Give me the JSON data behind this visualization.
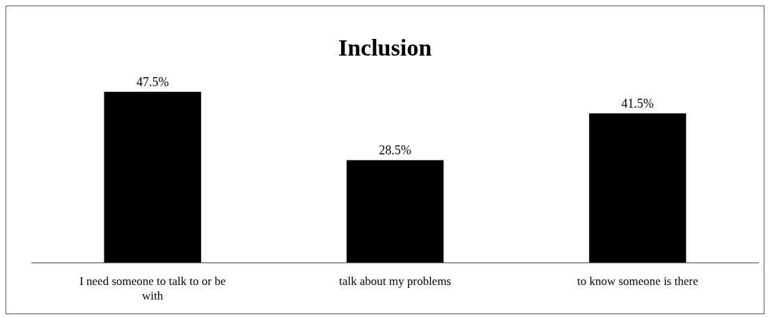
{
  "chart_data": {
    "type": "bar",
    "title": "Inclusion",
    "categories": [
      "I need someone to talk to or be with",
      "talk about my problems",
      "to know someone is there"
    ],
    "values": [
      47.5,
      28.5,
      41.5
    ],
    "color": "#000000",
    "value_labels": [
      "47.5%",
      "28.5%",
      "41.5%"
    ]
  }
}
